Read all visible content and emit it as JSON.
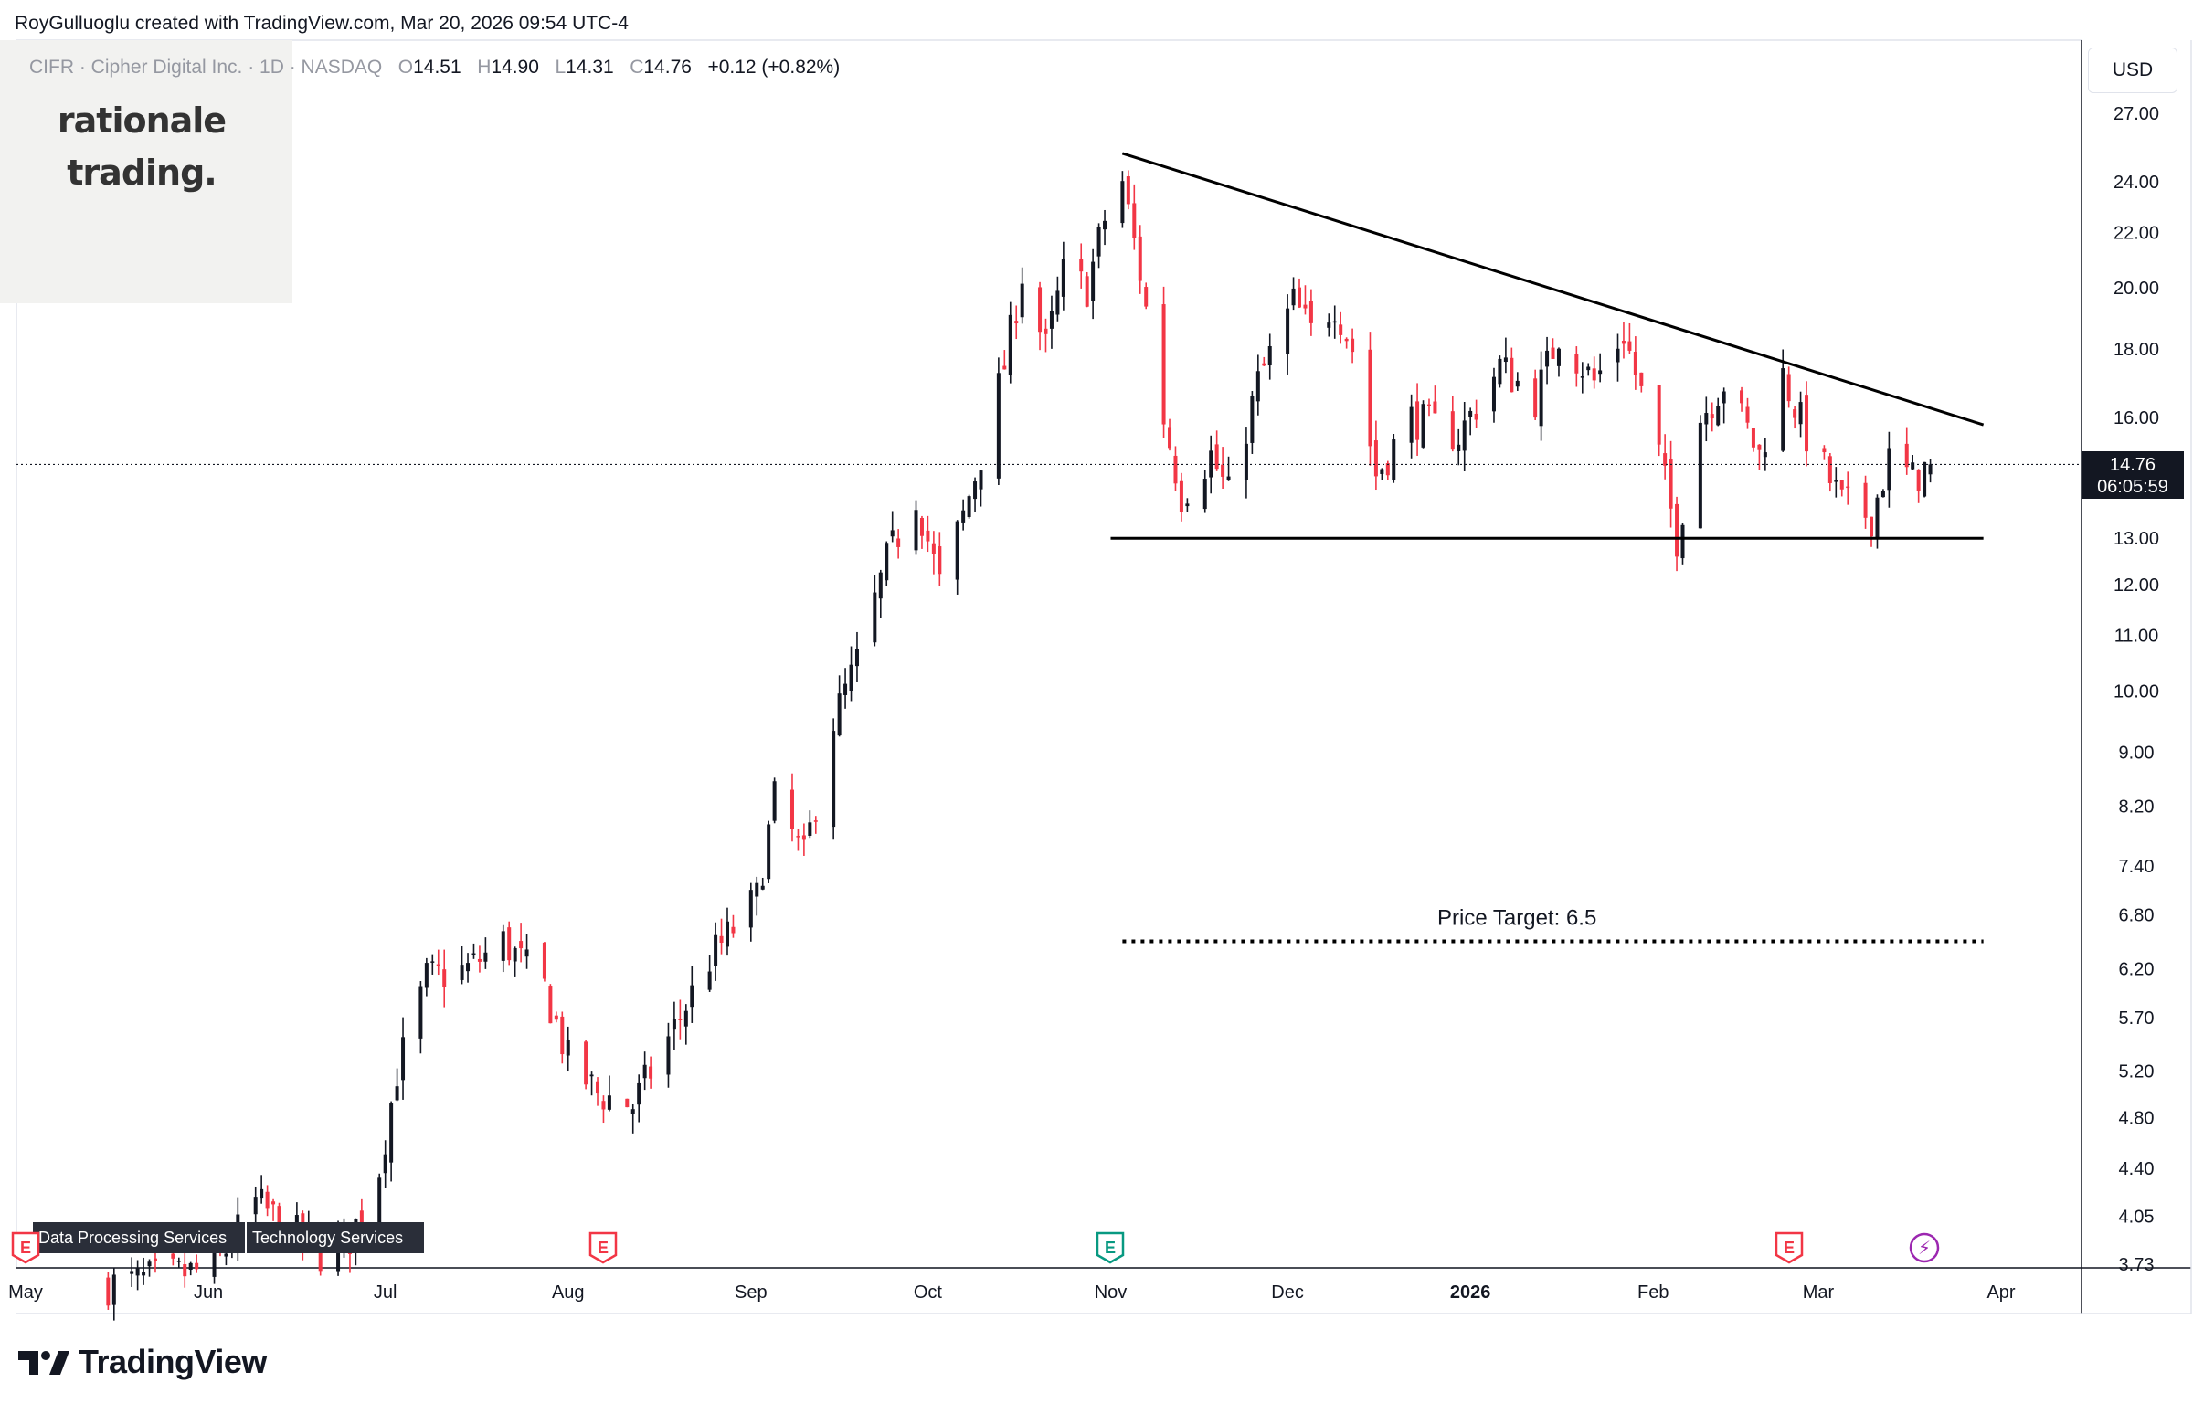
{
  "header": {
    "credit": "RoyGulluoglu created with TradingView.com, Mar 20, 2026 09:54 UTC-4"
  },
  "watermark": {
    "line1": "rationale",
    "line2": "trading."
  },
  "legend": {
    "symbol": "CIFR · Cipher Digital Inc. · 1D · NASDAQ",
    "o_label": "O",
    "o_value": "14.51",
    "h_label": "H",
    "h_value": "14.90",
    "l_label": "L",
    "l_value": "14.31",
    "c_label": "C",
    "c_value": "14.76",
    "change": "+0.12 (+0.82%)"
  },
  "price_axis": {
    "currency": "USD"
  },
  "last_price": {
    "price": "14.76",
    "countdown": "06:05:59",
    "value": 14.76
  },
  "sector_tags": [
    "Data Processing Services",
    "Technology Services"
  ],
  "events": [
    {
      "type": "earnings",
      "label": "E",
      "date": "2025-05-01",
      "color": "#f23645"
    },
    {
      "type": "earnings",
      "label": "E",
      "date": "2025-08-07",
      "color": "#f23645"
    },
    {
      "type": "earnings",
      "label": "E",
      "date": "2025-11-01",
      "color": "#089981"
    },
    {
      "type": "earnings",
      "label": "E",
      "date": "2026-02-24",
      "color": "#f23645"
    },
    {
      "type": "dividend",
      "label": "⚡",
      "date": "2026-03-19",
      "color": "#9c27b0"
    }
  ],
  "branding": {
    "logo_text": "TradingView"
  },
  "colors": {
    "up": "#131722",
    "down": "#f23645",
    "line": "#000000"
  },
  "chart_data": {
    "type": "candlestick",
    "scale": "log",
    "title": "CIFR · Cipher Digital Inc. · 1D · NASDAQ",
    "ylim": [
      3.73,
      27.0
    ],
    "y_ticks": [
      3.73,
      4.05,
      4.4,
      4.8,
      5.2,
      5.7,
      6.2,
      6.8,
      7.4,
      8.2,
      9.0,
      10.0,
      11.0,
      12.0,
      13.0,
      16.0,
      18.0,
      20.0,
      22.0,
      24.0,
      27.0
    ],
    "y_tick_labels": [
      "3.73",
      "4.05",
      "4.40",
      "4.80",
      "5.20",
      "5.70",
      "6.20",
      "6.80",
      "7.40",
      "8.20",
      "9.00",
      "10.00",
      "11.00",
      "12.00",
      "13.00",
      "16.00",
      "18.00",
      "20.00",
      "22.00",
      "24.00",
      "27.00"
    ],
    "x_ticks": [
      {
        "label": "May",
        "date": "2025-05-01"
      },
      {
        "label": "Jun",
        "date": "2025-06-01"
      },
      {
        "label": "Jul",
        "date": "2025-07-01"
      },
      {
        "label": "Aug",
        "date": "2025-08-01"
      },
      {
        "label": "Sep",
        "date": "2025-09-01"
      },
      {
        "label": "Oct",
        "date": "2025-10-01"
      },
      {
        "label": "Nov",
        "date": "2025-11-01"
      },
      {
        "label": "Dec",
        "date": "2025-12-01"
      },
      {
        "label": "2026",
        "date": "2026-01-01",
        "bold": true
      },
      {
        "label": "Feb",
        "date": "2026-02-01"
      },
      {
        "label": "Mar",
        "date": "2026-03-01"
      },
      {
        "label": "Apr",
        "date": "2026-04-01"
      }
    ],
    "x_range": [
      "2025-05-01",
      "2026-04-01"
    ],
    "anchors": [
      [
        "2025-05-15",
        3.6
      ],
      [
        "2025-06-02",
        3.7
      ],
      [
        "2025-06-09",
        4.15
      ],
      [
        "2025-06-20",
        3.8
      ],
      [
        "2025-06-25",
        3.9
      ],
      [
        "2025-06-30",
        4.4
      ],
      [
        "2025-07-03",
        5.2
      ],
      [
        "2025-07-08",
        6.1
      ],
      [
        "2025-07-15",
        6.2
      ],
      [
        "2025-07-21",
        6.5
      ],
      [
        "2025-07-28",
        6.0
      ],
      [
        "2025-08-01",
        5.3
      ],
      [
        "2025-08-06",
        5.0
      ],
      [
        "2025-08-12",
        4.9
      ],
      [
        "2025-08-19",
        5.6
      ],
      [
        "2025-08-25",
        6.3
      ],
      [
        "2025-09-02",
        7.0
      ],
      [
        "2025-09-05",
        8.3
      ],
      [
        "2025-09-10",
        7.5
      ],
      [
        "2025-09-15",
        9.5
      ],
      [
        "2025-09-19",
        10.5
      ],
      [
        "2025-09-24",
        12.5
      ],
      [
        "2025-09-29",
        14.0
      ],
      [
        "2025-10-03",
        12.0
      ],
      [
        "2025-10-07",
        13.5
      ],
      [
        "2025-10-10",
        15.0
      ],
      [
        "2025-10-14",
        17.5
      ],
      [
        "2025-10-17",
        20.5
      ],
      [
        "2025-10-21",
        18.0
      ],
      [
        "2025-10-24",
        20.5
      ],
      [
        "2025-10-28",
        20.0
      ],
      [
        "2025-10-31",
        22.5
      ],
      [
        "2025-11-03",
        24.0
      ],
      [
        "2025-11-06",
        20.5
      ],
      [
        "2025-11-10",
        16.0
      ],
      [
        "2025-11-13",
        14.0
      ],
      [
        "2025-11-18",
        15.0
      ],
      [
        "2025-11-21",
        14.0
      ],
      [
        "2025-11-26",
        17.0
      ],
      [
        "2025-12-02",
        19.5
      ],
      [
        "2025-12-05",
        18.5
      ],
      [
        "2025-12-09",
        19.5
      ],
      [
        "2025-12-12",
        18.0
      ],
      [
        "2025-12-16",
        14.5
      ],
      [
        "2025-12-22",
        16.0
      ],
      [
        "2025-12-30",
        15.5
      ],
      [
        "2026-01-06",
        17.5
      ],
      [
        "2026-01-12",
        16.5
      ],
      [
        "2026-01-16",
        18.5
      ],
      [
        "2026-01-22",
        17.0
      ],
      [
        "2026-01-27",
        18.5
      ],
      [
        "2026-02-02",
        15.0
      ],
      [
        "2026-02-05",
        13.0
      ],
      [
        "2026-02-09",
        16.0
      ],
      [
        "2026-02-13",
        17.0
      ],
      [
        "2026-02-19",
        15.0
      ],
      [
        "2026-02-23",
        17.2
      ],
      [
        "2026-02-27",
        15.5
      ],
      [
        "2026-03-05",
        13.8
      ],
      [
        "2026-03-10",
        13.5
      ],
      [
        "2026-03-13",
        14.9
      ],
      [
        "2026-03-17",
        14.4
      ],
      [
        "2026-03-20",
        14.76
      ]
    ],
    "last_close": 14.76,
    "last_date": "2026-03-20",
    "annotations": [
      {
        "type": "trendline",
        "name": "descending-resistance",
        "from": [
          "2025-11-03",
          25.2
        ],
        "to": [
          "2026-03-29",
          15.8
        ]
      },
      {
        "type": "trendline",
        "name": "horizontal-support",
        "from": [
          "2025-11-01",
          13.0
        ],
        "to": [
          "2026-03-29",
          13.0
        ]
      },
      {
        "type": "dotted-line",
        "name": "price-target-line",
        "from": [
          "2025-11-03",
          6.5
        ],
        "to": [
          "2026-03-29",
          6.5
        ]
      },
      {
        "type": "text",
        "name": "price-target-label",
        "text": "Price Target: 6.5",
        "at": [
          "2026-01-12",
          6.5
        ]
      }
    ]
  }
}
